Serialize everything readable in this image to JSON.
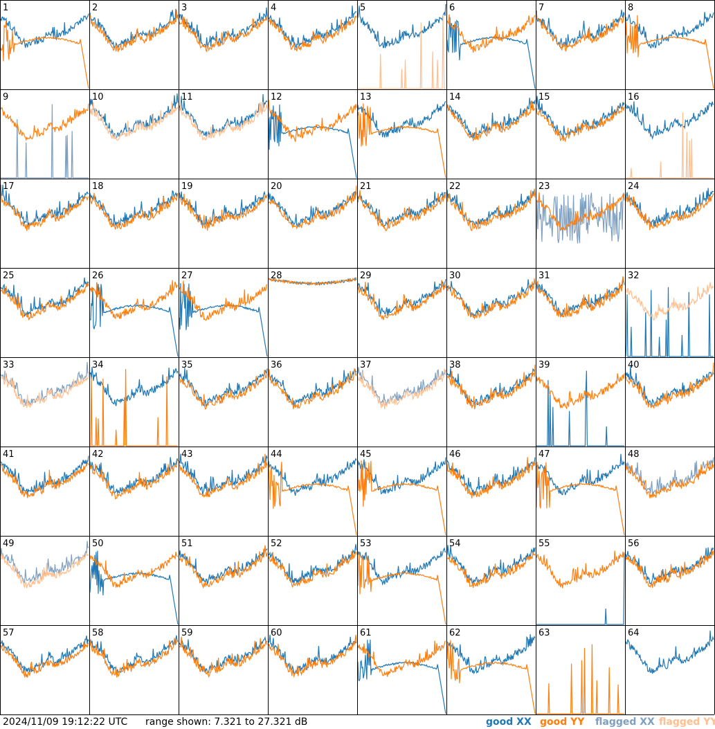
{
  "timestamp": "2024/11/09 19:12:22 UTC",
  "range_text": "range shown: 7.321 to 27.321 dB",
  "legend": {
    "good_xx": "good XX",
    "good_yy": "good YY",
    "flagged_xx": "flagged XX",
    "flagged_yy": "flagged YY"
  },
  "colors": {
    "good_xx": "#1f77b4",
    "good_yy": "#ff7f0e",
    "flagged_xx": "#7f9fbf",
    "flagged_yy": "#ffbf8f",
    "grid": "#000000"
  },
  "chart_data": {
    "type": "line",
    "grid": "8x8 small multiples",
    "ylim": [
      7.321,
      27.321
    ],
    "yunit": "dB",
    "panels": [
      {
        "id": "1",
        "xx": "good",
        "yy": "good",
        "xx_shape": "normal",
        "yy_shape": "dropout"
      },
      {
        "id": "2",
        "xx": "good",
        "yy": "good",
        "xx_shape": "normal",
        "yy_shape": "normal"
      },
      {
        "id": "3",
        "xx": "good",
        "yy": "good",
        "xx_shape": "normal",
        "yy_shape": "normal"
      },
      {
        "id": "4",
        "xx": "good",
        "yy": "good",
        "xx_shape": "normal",
        "yy_shape": "normal"
      },
      {
        "id": "5",
        "xx": "good",
        "yy": "flagged",
        "xx_shape": "normal",
        "yy_shape": "spikes"
      },
      {
        "id": "6",
        "xx": "good",
        "yy": "good",
        "xx_shape": "dropout",
        "yy_shape": "normal"
      },
      {
        "id": "7",
        "xx": "good",
        "yy": "good",
        "xx_shape": "normal",
        "yy_shape": "normal"
      },
      {
        "id": "8",
        "xx": "good",
        "yy": "good",
        "xx_shape": "normal",
        "yy_shape": "dropout"
      },
      {
        "id": "9",
        "xx": "flagged",
        "yy": "good",
        "xx_shape": "spikes",
        "yy_shape": "normal"
      },
      {
        "id": "10",
        "xx": "good",
        "yy": "flagged",
        "xx_shape": "normal",
        "yy_shape": "normal"
      },
      {
        "id": "11",
        "xx": "good",
        "yy": "flagged",
        "xx_shape": "normal",
        "yy_shape": "normal"
      },
      {
        "id": "12",
        "xx": "good",
        "yy": "good",
        "xx_shape": "dropout",
        "yy_shape": "normal"
      },
      {
        "id": "13",
        "xx": "good",
        "yy": "good",
        "xx_shape": "normal",
        "yy_shape": "dropout"
      },
      {
        "id": "14",
        "xx": "good",
        "yy": "good",
        "xx_shape": "normal",
        "yy_shape": "normal"
      },
      {
        "id": "15",
        "xx": "good",
        "yy": "good",
        "xx_shape": "normal",
        "yy_shape": "normal"
      },
      {
        "id": "16",
        "xx": "good",
        "yy": "flagged",
        "xx_shape": "normal",
        "yy_shape": "spikes"
      },
      {
        "id": "17",
        "xx": "good",
        "yy": "good",
        "xx_shape": "normal",
        "yy_shape": "normal"
      },
      {
        "id": "18",
        "xx": "good",
        "yy": "good",
        "xx_shape": "normal",
        "yy_shape": "normal"
      },
      {
        "id": "19",
        "xx": "good",
        "yy": "good",
        "xx_shape": "normal",
        "yy_shape": "normal"
      },
      {
        "id": "20",
        "xx": "good",
        "yy": "good",
        "xx_shape": "normal",
        "yy_shape": "normal"
      },
      {
        "id": "21",
        "xx": "good",
        "yy": "good",
        "xx_shape": "normal",
        "yy_shape": "normal"
      },
      {
        "id": "22",
        "xx": "good",
        "yy": "good",
        "xx_shape": "normal",
        "yy_shape": "normal"
      },
      {
        "id": "23",
        "xx": "flagged",
        "yy": "good",
        "xx_shape": "noisy",
        "yy_shape": "normal"
      },
      {
        "id": "24",
        "xx": "good",
        "yy": "good",
        "xx_shape": "normal",
        "yy_shape": "normal"
      },
      {
        "id": "25",
        "xx": "good",
        "yy": "good",
        "xx_shape": "normal",
        "yy_shape": "normal"
      },
      {
        "id": "26",
        "xx": "good",
        "yy": "good",
        "xx_shape": "dropout",
        "yy_shape": "normal"
      },
      {
        "id": "27",
        "xx": "good",
        "yy": "good",
        "xx_shape": "dropout",
        "yy_shape": "normal"
      },
      {
        "id": "28",
        "xx": "good",
        "yy": "good",
        "xx_shape": "flat",
        "yy_shape": "flat"
      },
      {
        "id": "29",
        "xx": "good",
        "yy": "good",
        "xx_shape": "normal",
        "yy_shape": "normal"
      },
      {
        "id": "30",
        "xx": "good",
        "yy": "good",
        "xx_shape": "normal",
        "yy_shape": "normal"
      },
      {
        "id": "31",
        "xx": "good",
        "yy": "good",
        "xx_shape": "normal",
        "yy_shape": "normal"
      },
      {
        "id": "32",
        "xx": "good",
        "yy": "flagged",
        "xx_shape": "spikes",
        "yy_shape": "normal"
      },
      {
        "id": "33",
        "xx": "flagged",
        "yy": "flagged",
        "xx_shape": "normal",
        "yy_shape": "normal"
      },
      {
        "id": "34",
        "xx": "good",
        "yy": "good",
        "xx_shape": "normal",
        "yy_shape": "spikes"
      },
      {
        "id": "35",
        "xx": "good",
        "yy": "good",
        "xx_shape": "normal",
        "yy_shape": "normal"
      },
      {
        "id": "36",
        "xx": "good",
        "yy": "good",
        "xx_shape": "normal",
        "yy_shape": "normal"
      },
      {
        "id": "37",
        "xx": "flagged",
        "yy": "flagged",
        "xx_shape": "normal",
        "yy_shape": "normal"
      },
      {
        "id": "38",
        "xx": "good",
        "yy": "good",
        "xx_shape": "normal",
        "yy_shape": "normal"
      },
      {
        "id": "39",
        "xx": "good",
        "yy": "good",
        "xx_shape": "spikes",
        "yy_shape": "normal"
      },
      {
        "id": "40",
        "xx": "good",
        "yy": "good",
        "xx_shape": "normal",
        "yy_shape": "normal"
      },
      {
        "id": "41",
        "xx": "good",
        "yy": "good",
        "xx_shape": "normal",
        "yy_shape": "normal"
      },
      {
        "id": "42",
        "xx": "good",
        "yy": "good",
        "xx_shape": "normal",
        "yy_shape": "normal"
      },
      {
        "id": "43",
        "xx": "good",
        "yy": "good",
        "xx_shape": "normal",
        "yy_shape": "normal"
      },
      {
        "id": "44",
        "xx": "good",
        "yy": "good",
        "xx_shape": "normal",
        "yy_shape": "dropout"
      },
      {
        "id": "45",
        "xx": "good",
        "yy": "good",
        "xx_shape": "normal",
        "yy_shape": "dropout"
      },
      {
        "id": "46",
        "xx": "good",
        "yy": "good",
        "xx_shape": "normal",
        "yy_shape": "normal"
      },
      {
        "id": "47",
        "xx": "good",
        "yy": "good",
        "xx_shape": "normal",
        "yy_shape": "dropout"
      },
      {
        "id": "48",
        "xx": "flagged",
        "yy": "good",
        "xx_shape": "normal",
        "yy_shape": "normal"
      },
      {
        "id": "49",
        "xx": "flagged",
        "yy": "flagged",
        "xx_shape": "normal",
        "yy_shape": "normal"
      },
      {
        "id": "50",
        "xx": "good",
        "yy": "good",
        "xx_shape": "dropout",
        "yy_shape": "normal"
      },
      {
        "id": "51",
        "xx": "good",
        "yy": "good",
        "xx_shape": "normal",
        "yy_shape": "normal"
      },
      {
        "id": "52",
        "xx": "good",
        "yy": "good",
        "xx_shape": "normal",
        "yy_shape": "normal"
      },
      {
        "id": "53",
        "xx": "good",
        "yy": "good",
        "xx_shape": "normal",
        "yy_shape": "dropout"
      },
      {
        "id": "54",
        "xx": "good",
        "yy": "good",
        "xx_shape": "normal",
        "yy_shape": "normal"
      },
      {
        "id": "55",
        "xx": "good",
        "yy": "good",
        "xx_shape": "spikes",
        "yy_shape": "normal"
      },
      {
        "id": "56",
        "xx": "good",
        "yy": "good",
        "xx_shape": "normal",
        "yy_shape": "normal"
      },
      {
        "id": "57",
        "xx": "good",
        "yy": "good",
        "xx_shape": "normal",
        "yy_shape": "normal"
      },
      {
        "id": "58",
        "xx": "good",
        "yy": "good",
        "xx_shape": "normal",
        "yy_shape": "normal"
      },
      {
        "id": "59",
        "xx": "good",
        "yy": "good",
        "xx_shape": "normal",
        "yy_shape": "normal"
      },
      {
        "id": "60",
        "xx": "good",
        "yy": "good",
        "xx_shape": "normal",
        "yy_shape": "normal"
      },
      {
        "id": "61",
        "xx": "good",
        "yy": "good",
        "xx_shape": "dropout",
        "yy_shape": "normal"
      },
      {
        "id": "62",
        "xx": "good",
        "yy": "good",
        "xx_shape": "normal",
        "yy_shape": "dropout"
      },
      {
        "id": "63",
        "xx": "good",
        "yy": "good",
        "xx_shape": "none",
        "yy_shape": "spikes"
      },
      {
        "id": "64",
        "xx": "good",
        "yy": "good",
        "xx_shape": "normal",
        "yy_shape": "none"
      }
    ]
  }
}
